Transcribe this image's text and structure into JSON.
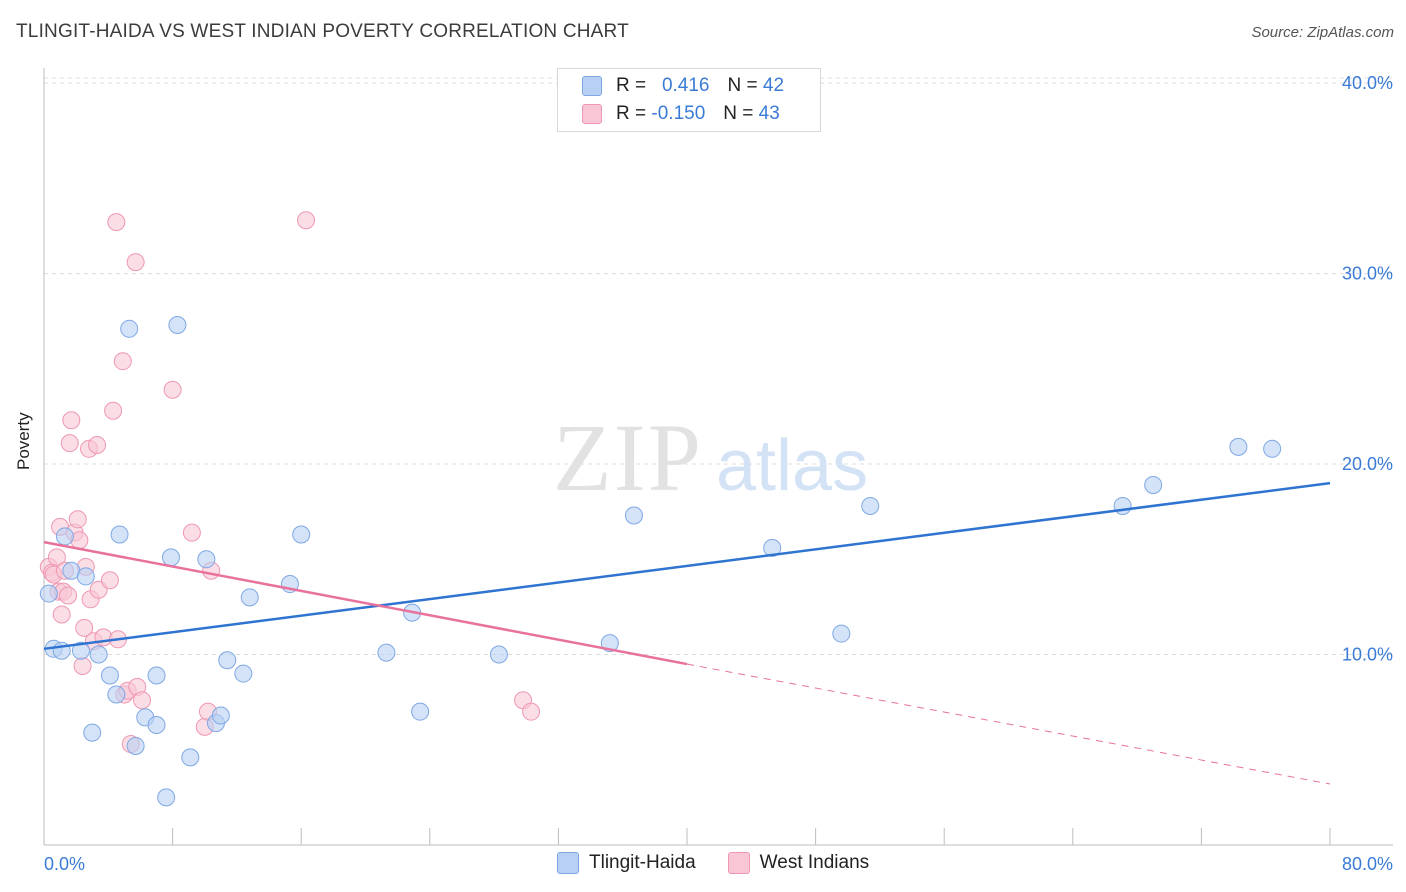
{
  "title": "TLINGIT-HAIDA VS WEST INDIAN POVERTY CORRELATION CHART",
  "source": "Source: ZipAtlas.com",
  "watermark": {
    "zip": "ZIP",
    "atlas": "atlas"
  },
  "legend_top": {
    "rows": [
      {
        "r_label": "R =",
        "r_value": "0.416",
        "n_label": "N =",
        "n_value": "42",
        "color": "#a9c8f2"
      },
      {
        "r_label": "R =",
        "r_value": "-0.150",
        "n_label": "N =",
        "n_value": "43",
        "color": "#f6b9cb"
      }
    ]
  },
  "colors": {
    "blue_fill": "#b7d0f3",
    "blue_stroke": "#7ea8e4",
    "blue_line": "#2f74d0",
    "pink_fill": "#f8c6d5",
    "pink_stroke": "#ee98b2",
    "pink_line": "#e8729c",
    "tick_text": "#3a7bd5",
    "grid": "#dcdcdc"
  },
  "chart_data": {
    "type": "scatter",
    "title": "TLINGIT-HAIDA VS WEST INDIAN POVERTY CORRELATION CHART",
    "xlabel": "",
    "ylabel": "Poverty",
    "xlim": [
      0,
      80
    ],
    "ylim": [
      0,
      42
    ],
    "x_tick_labels": [
      "0.0%",
      "80.0%"
    ],
    "y_ticks": [
      10,
      20,
      30,
      40
    ],
    "y_tick_labels": [
      "10.0%",
      "20.0%",
      "30.0%",
      "40.0%"
    ],
    "grid": "horizontal dashed",
    "legend_position": "bottom",
    "series": [
      {
        "name": "Tlingit-Haida",
        "color": "#b7d0f3",
        "points": [
          [
            0.3,
            13.2
          ],
          [
            0.6,
            10.3
          ],
          [
            1.1,
            10.2
          ],
          [
            1.3,
            16.2
          ],
          [
            1.7,
            14.4
          ],
          [
            2.3,
            10.2
          ],
          [
            2.6,
            14.1
          ],
          [
            3.0,
            5.9
          ],
          [
            3.4,
            10.0
          ],
          [
            4.1,
            8.9
          ],
          [
            4.5,
            7.9
          ],
          [
            4.7,
            16.3
          ],
          [
            5.3,
            27.1
          ],
          [
            5.7,
            5.2
          ],
          [
            6.3,
            6.7
          ],
          [
            7.0,
            8.9
          ],
          [
            7.0,
            6.3
          ],
          [
            7.6,
            2.5
          ],
          [
            7.9,
            15.1
          ],
          [
            8.3,
            27.3
          ],
          [
            9.1,
            4.6
          ],
          [
            10.1,
            15.0
          ],
          [
            10.7,
            6.4
          ],
          [
            11.0,
            6.8
          ],
          [
            11.4,
            9.7
          ],
          [
            12.4,
            9.0
          ],
          [
            12.8,
            13.0
          ],
          [
            15.3,
            13.7
          ],
          [
            16.0,
            16.3
          ],
          [
            21.3,
            10.1
          ],
          [
            22.9,
            12.2
          ],
          [
            23.4,
            7.0
          ],
          [
            28.3,
            10.0
          ],
          [
            35.2,
            10.6
          ],
          [
            36.7,
            17.3
          ],
          [
            45.3,
            15.6
          ],
          [
            49.6,
            11.1
          ],
          [
            51.4,
            17.8
          ],
          [
            67.1,
            17.8
          ],
          [
            69.0,
            18.9
          ],
          [
            74.3,
            20.9
          ],
          [
            76.4,
            20.8
          ]
        ],
        "trend": [
          [
            0,
            10.3
          ],
          [
            80,
            19.0
          ]
        ]
      },
      {
        "name": "West Indians",
        "color": "#f8c6d5",
        "points": [
          [
            0.3,
            14.6
          ],
          [
            0.5,
            14.3
          ],
          [
            0.6,
            14.2
          ],
          [
            0.8,
            15.1
          ],
          [
            0.9,
            13.3
          ],
          [
            1.0,
            16.7
          ],
          [
            1.1,
            12.1
          ],
          [
            1.2,
            13.3
          ],
          [
            1.3,
            14.4
          ],
          [
            1.5,
            13.1
          ],
          [
            1.6,
            21.1
          ],
          [
            1.7,
            22.3
          ],
          [
            1.9,
            16.4
          ],
          [
            2.1,
            17.1
          ],
          [
            2.2,
            16.0
          ],
          [
            2.4,
            9.4
          ],
          [
            2.5,
            11.4
          ],
          [
            2.6,
            14.6
          ],
          [
            2.8,
            20.8
          ],
          [
            2.9,
            12.9
          ],
          [
            3.1,
            10.7
          ],
          [
            3.3,
            21.0
          ],
          [
            3.4,
            13.4
          ],
          [
            3.7,
            10.9
          ],
          [
            4.1,
            13.9
          ],
          [
            4.3,
            22.8
          ],
          [
            4.5,
            32.7
          ],
          [
            4.6,
            10.8
          ],
          [
            4.9,
            25.4
          ],
          [
            5.0,
            7.9
          ],
          [
            5.2,
            8.1
          ],
          [
            5.4,
            5.3
          ],
          [
            5.7,
            30.6
          ],
          [
            5.8,
            8.3
          ],
          [
            6.1,
            7.6
          ],
          [
            8.0,
            23.9
          ],
          [
            9.2,
            16.4
          ],
          [
            10.0,
            6.2
          ],
          [
            10.2,
            7.0
          ],
          [
            10.4,
            14.4
          ],
          [
            16.3,
            32.8
          ],
          [
            29.8,
            7.6
          ],
          [
            30.3,
            7.0
          ]
        ],
        "trend": [
          [
            0,
            15.9
          ],
          [
            40,
            9.5
          ]
        ],
        "trend_dashed": [
          [
            40,
            9.5
          ],
          [
            80,
            3.2
          ]
        ]
      }
    ]
  },
  "legend_bottom": [
    {
      "label": "Tlingit-Haida",
      "color": "#b7d0f3"
    },
    {
      "label": "West Indians",
      "color": "#f8c6d5"
    }
  ]
}
